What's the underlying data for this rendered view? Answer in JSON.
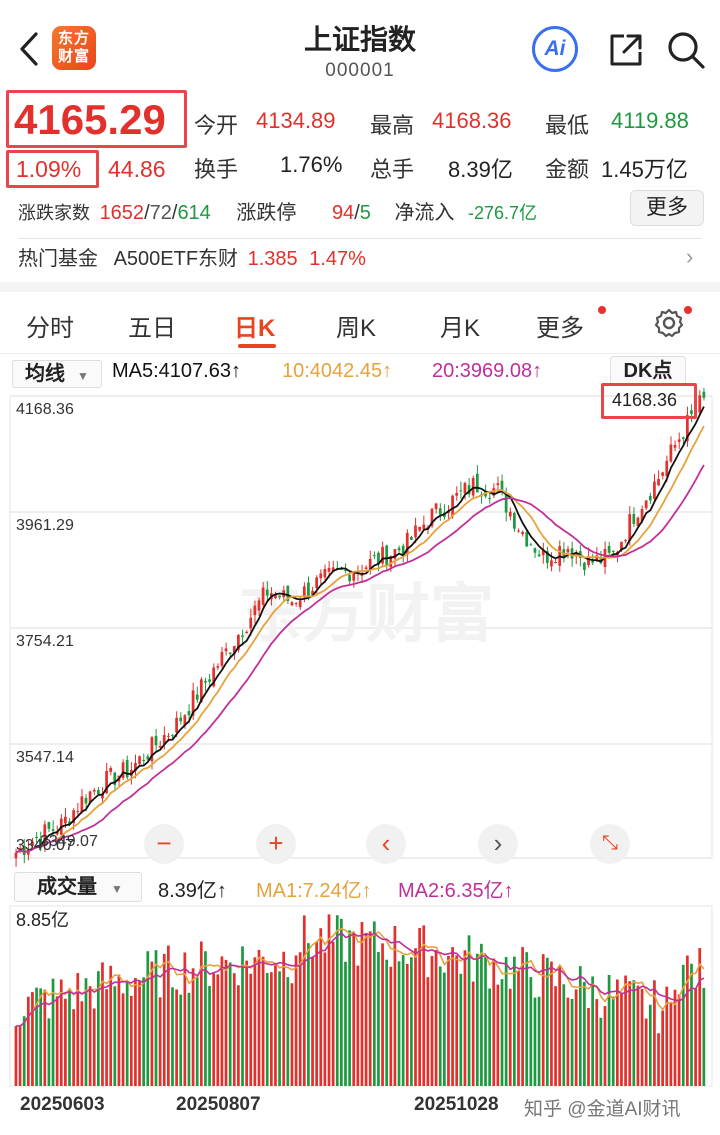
{
  "header": {
    "title": "上证指数",
    "code": "000001",
    "logo_text": "东方财富",
    "ai_label": "Ai"
  },
  "quote": {
    "price": "4165.29",
    "change_pct": "1.09%",
    "change": "44.86",
    "open_label": "今开",
    "open": "4134.89",
    "high_label": "最高",
    "high": "4168.36",
    "low_label": "最低",
    "low": "4119.88",
    "turnover_label": "换手",
    "turnover": "1.76%",
    "volume_label": "总手",
    "volume": "8.39亿",
    "amount_label": "金额",
    "amount": "1.45万亿",
    "breadth_label": "涨跌家数",
    "up": "1652",
    "flat": "72",
    "down": "614",
    "limit_label": "涨跌停",
    "limit_up": "94",
    "limit_down": "5",
    "netflow_label": "净流入",
    "netflow": "-276.7亿",
    "more_label": "更多"
  },
  "fund": {
    "label": "热门基金",
    "name": "A500ETF东财",
    "price": "1.385",
    "pct": "1.47%"
  },
  "tabs": [
    "分时",
    "五日",
    "日K",
    "周K",
    "月K",
    "更多"
  ],
  "active_tab": "日K",
  "ma": {
    "select_label": "均线",
    "ma5": "MA5:4107.63↑",
    "ma10": "10:4042.45↑",
    "ma20": "20:3969.08↑",
    "dk_label": "DK点"
  },
  "kline_axis": {
    "ticks": [
      "4168.36",
      "3961.29",
      "3754.21",
      "3547.14",
      "3340.07"
    ],
    "extra_tick": "3349.07",
    "high_marker": "4168.36"
  },
  "volume": {
    "select_label": "成交量",
    "current": "8.39亿↑",
    "ma1": "MA1:7.24亿↑",
    "ma2": "MA2:6.35亿↑",
    "axis_max": "8.85亿"
  },
  "dates": [
    "20250603",
    "20250807",
    "20251028"
  ],
  "watermark": "知乎 @金道AI财讯",
  "colors": {
    "up": "#e2302c",
    "down": "#1d9a3f",
    "accent": "#e8441f",
    "ma5": "#111111",
    "ma10": "#e6a23c",
    "ma20": "#c0309a"
  },
  "chart_data": {
    "type": "candlestick",
    "ylim": [
      3340.07,
      4168.36
    ],
    "ma_series": [
      "MA5",
      "MA10",
      "MA20"
    ],
    "close_trend": [
      3350,
      3380,
      3400,
      3450,
      3480,
      3500,
      3540,
      3580,
      3640,
      3700,
      3760,
      3820,
      3800,
      3830,
      3850,
      3860,
      3880,
      3900,
      3950,
      3980,
      4010,
      4000,
      3930,
      3880,
      3900,
      3870,
      3880,
      3960,
      4020,
      4100,
      4165
    ]
  }
}
